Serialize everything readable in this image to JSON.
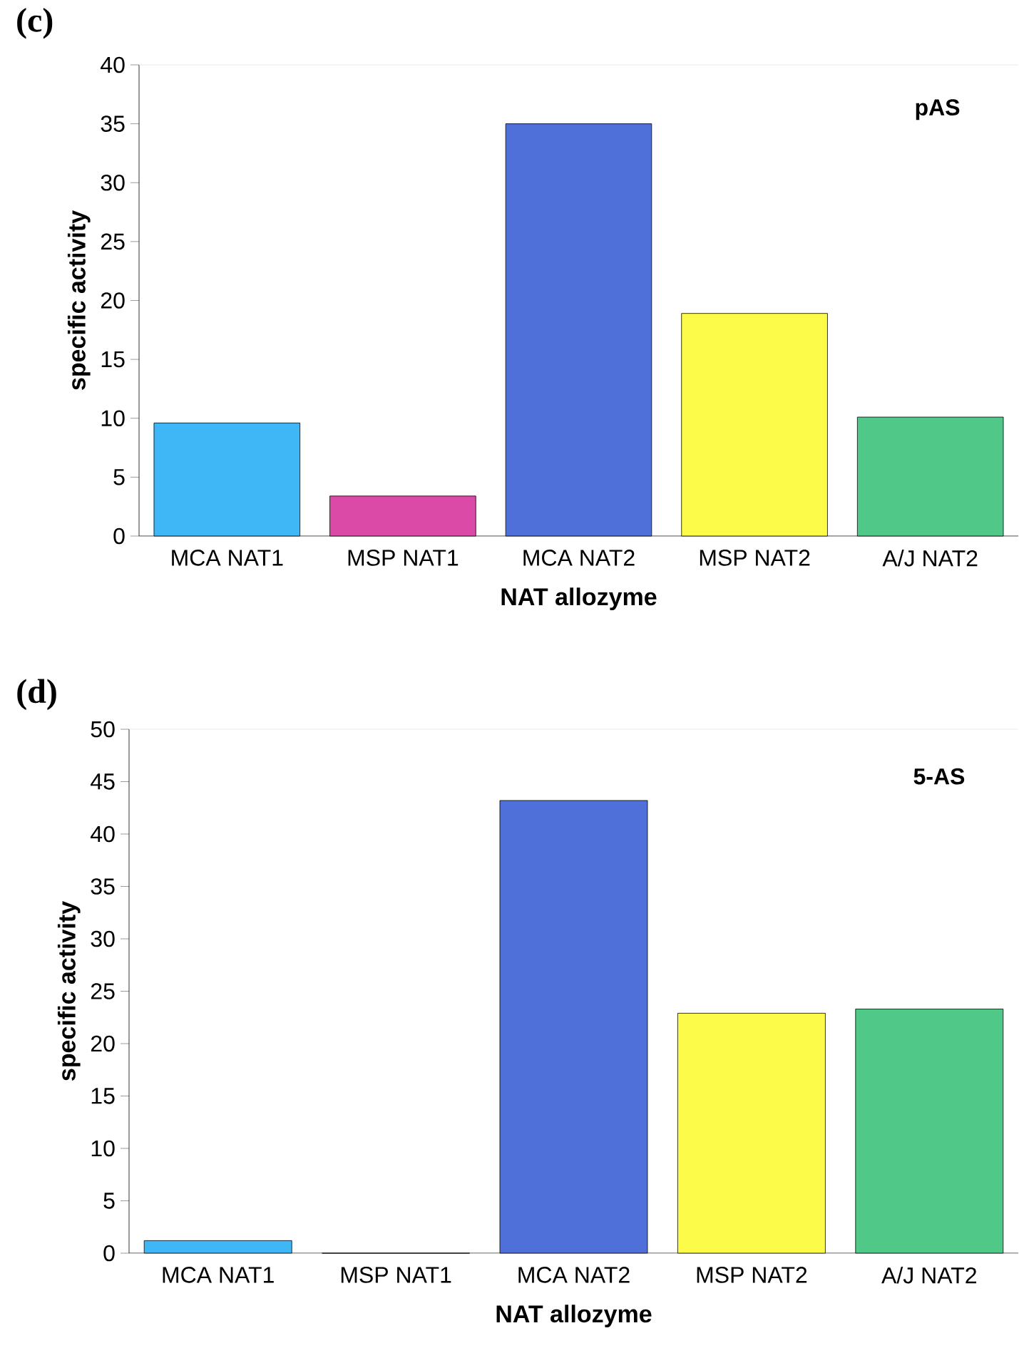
{
  "chart_data": [
    {
      "type": "bar",
      "title": "(c)",
      "xlabel": "NAT allozyme",
      "ylabel": "specific activity",
      "annotations": [
        "pAS"
      ],
      "categories": [
        "MCA NAT1",
        "MSP NAT1",
        "MCA NAT2",
        "MSP NAT2",
        "A/J NAT2"
      ],
      "values": [
        9.6,
        3.4,
        35.0,
        18.9,
        10.1
      ],
      "colors": [
        "#3fb6f5",
        "#dc4aa8",
        "#4f6fd9",
        "#fdfb4a",
        "#4fc888"
      ],
      "ylim": [
        0,
        40
      ],
      "yticks": [
        0,
        5,
        10,
        15,
        20,
        25,
        30,
        35,
        40
      ],
      "grid": false
    },
    {
      "type": "bar",
      "title": "(d)",
      "xlabel": "NAT allozyme",
      "ylabel": "specific activity",
      "annotations": [
        "5-AS"
      ],
      "categories": [
        "MCA NAT1",
        "MSP NAT1",
        "MCA NAT2",
        "MSP NAT2",
        "A/J NAT2"
      ],
      "values": [
        1.2,
        0,
        43.2,
        22.9,
        23.3
      ],
      "colors": [
        "#3fb6f5",
        "#dc4aa8",
        "#4f6fd9",
        "#fdfb4a",
        "#4fc888"
      ],
      "ylim": [
        0,
        50
      ],
      "yticks": [
        0,
        5,
        10,
        15,
        20,
        25,
        30,
        35,
        40,
        45,
        50
      ],
      "grid": false
    }
  ]
}
